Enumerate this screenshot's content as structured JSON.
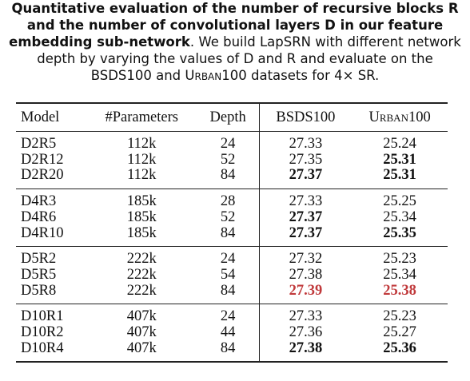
{
  "caption": {
    "bold": "Quantitative evaluation of the number of recursive blocks R and the number of convolutional layers D in our feature embedding sub-network",
    "text": ". We build LapSRN with different network depth by varying the values of D and R and evaluate on the BSDS100 and ",
    "dataset": "Urban100",
    "tail": " datasets for 4× SR."
  },
  "table": {
    "header": [
      "Model",
      "#Parameters",
      "Depth",
      "BSDS100",
      "Urban100"
    ],
    "groups": [
      {
        "rows": [
          [
            "D2R5",
            "112k",
            "24",
            "27.33",
            "25.24"
          ],
          [
            "D2R12",
            "112k",
            "52",
            "27.35",
            "25.31"
          ],
          [
            "D2R20",
            "112k",
            "84",
            "27.37",
            "25.31"
          ]
        ],
        "emphasis": [
          [
            "normal",
            "normal",
            "normal",
            "normal",
            "normal"
          ],
          [
            "normal",
            "normal",
            "normal",
            "normal",
            "bold"
          ],
          [
            "normal",
            "normal",
            "normal",
            "bold",
            "bold"
          ]
        ]
      },
      {
        "rows": [
          [
            "D4R3",
            "185k",
            "28",
            "27.33",
            "25.25"
          ],
          [
            "D4R6",
            "185k",
            "52",
            "27.37",
            "25.34"
          ],
          [
            "D4R10",
            "185k",
            "84",
            "27.37",
            "25.35"
          ]
        ],
        "emphasis": [
          [
            "normal",
            "normal",
            "normal",
            "normal",
            "normal"
          ],
          [
            "normal",
            "normal",
            "normal",
            "bold",
            "normal"
          ],
          [
            "normal",
            "normal",
            "normal",
            "bold",
            "bold"
          ]
        ]
      },
      {
        "rows": [
          [
            "D5R2",
            "222k",
            "24",
            "27.32",
            "25.23"
          ],
          [
            "D5R5",
            "222k",
            "54",
            "27.38",
            "25.34"
          ],
          [
            "D5R8",
            "222k",
            "84",
            "27.39",
            "25.38"
          ]
        ],
        "emphasis": [
          [
            "normal",
            "normal",
            "normal",
            "normal",
            "normal"
          ],
          [
            "normal",
            "normal",
            "normal",
            "normal",
            "normal"
          ],
          [
            "normal",
            "normal",
            "normal",
            "red",
            "red"
          ]
        ]
      },
      {
        "rows": [
          [
            "D10R1",
            "407k",
            "24",
            "27.33",
            "25.23"
          ],
          [
            "D10R2",
            "407k",
            "44",
            "27.36",
            "25.27"
          ],
          [
            "D10R4",
            "407k",
            "84",
            "27.38",
            "25.36"
          ]
        ],
        "emphasis": [
          [
            "normal",
            "normal",
            "normal",
            "normal",
            "normal"
          ],
          [
            "normal",
            "normal",
            "normal",
            "normal",
            "normal"
          ],
          [
            "normal",
            "normal",
            "normal",
            "bold",
            "bold"
          ]
        ]
      }
    ]
  }
}
